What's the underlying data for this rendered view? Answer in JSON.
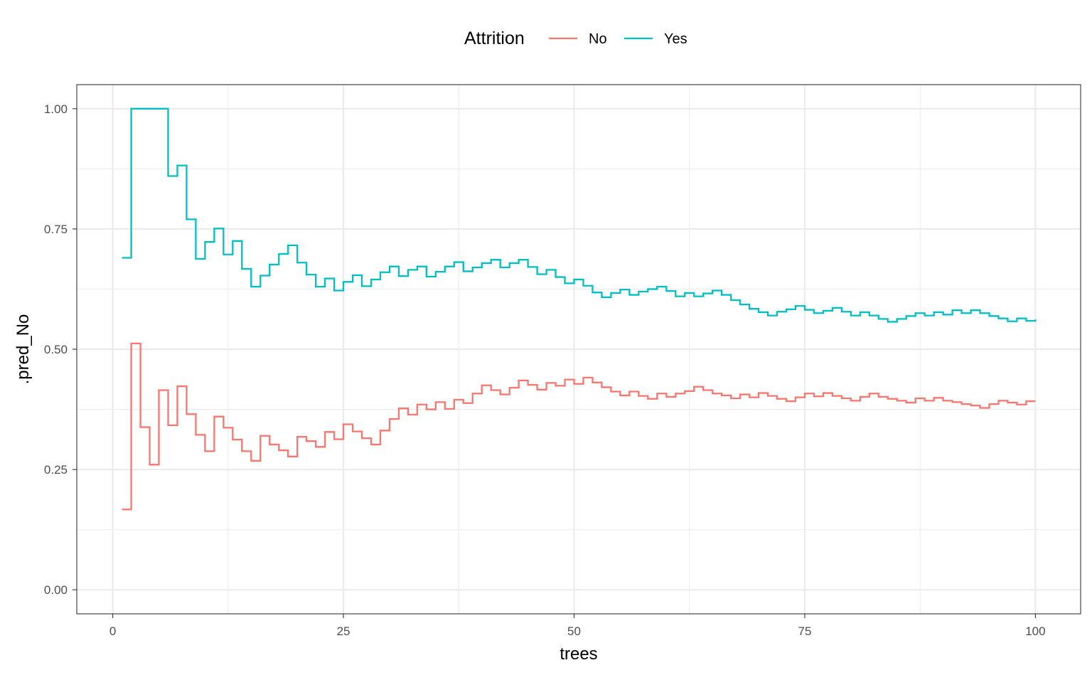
{
  "chart_data": {
    "type": "line",
    "step": true,
    "title": "",
    "xlabel": "trees",
    "ylabel": ".pred_No",
    "xlim": [
      -3.9,
      104.9
    ],
    "ylim": [
      -0.05,
      1.05
    ],
    "x_ticks": [
      0,
      25,
      50,
      75,
      100
    ],
    "x_tick_labels": [
      "0",
      "25",
      "50",
      "75",
      "100"
    ],
    "x_minor": [
      12.5,
      37.5,
      62.5,
      87.5
    ],
    "y_ticks": [
      0,
      0.25,
      0.5,
      0.75,
      1.0
    ],
    "y_tick_labels": [
      "0.00",
      "0.25",
      "0.50",
      "0.75",
      "1.00"
    ],
    "y_minor": [
      0.125,
      0.375,
      0.625,
      0.875
    ],
    "grid": true,
    "legend": {
      "title": "Attrition",
      "position": "top"
    },
    "x": [
      1,
      2,
      3,
      4,
      5,
      6,
      7,
      8,
      9,
      10,
      11,
      12,
      13,
      14,
      15,
      16,
      17,
      18,
      19,
      20,
      21,
      22,
      23,
      24,
      25,
      26,
      27,
      28,
      29,
      30,
      31,
      32,
      33,
      34,
      35,
      36,
      37,
      38,
      39,
      40,
      41,
      42,
      43,
      44,
      45,
      46,
      47,
      48,
      49,
      50,
      51,
      52,
      53,
      54,
      55,
      56,
      57,
      58,
      59,
      60,
      61,
      62,
      63,
      64,
      65,
      66,
      67,
      68,
      69,
      70,
      71,
      72,
      73,
      74,
      75,
      76,
      77,
      78,
      79,
      80,
      81,
      82,
      83,
      84,
      85,
      86,
      87,
      88,
      89,
      90,
      91,
      92,
      93,
      94,
      95,
      96,
      97,
      98,
      99,
      100
    ],
    "series": [
      {
        "name": "No",
        "color": "#F8766D",
        "values": [
          0.167,
          0.512,
          0.338,
          0.26,
          0.415,
          0.342,
          0.423,
          0.365,
          0.322,
          0.288,
          0.36,
          0.337,
          0.312,
          0.288,
          0.268,
          0.32,
          0.302,
          0.29,
          0.277,
          0.318,
          0.309,
          0.297,
          0.328,
          0.313,
          0.344,
          0.329,
          0.315,
          0.302,
          0.331,
          0.355,
          0.377,
          0.364,
          0.385,
          0.375,
          0.39,
          0.376,
          0.395,
          0.388,
          0.408,
          0.425,
          0.415,
          0.406,
          0.42,
          0.435,
          0.426,
          0.416,
          0.43,
          0.424,
          0.437,
          0.428,
          0.441,
          0.431,
          0.421,
          0.412,
          0.404,
          0.412,
          0.403,
          0.397,
          0.408,
          0.401,
          0.408,
          0.413,
          0.422,
          0.415,
          0.408,
          0.404,
          0.398,
          0.406,
          0.4,
          0.409,
          0.403,
          0.397,
          0.392,
          0.4,
          0.408,
          0.402,
          0.409,
          0.403,
          0.398,
          0.393,
          0.401,
          0.408,
          0.401,
          0.397,
          0.393,
          0.389,
          0.398,
          0.393,
          0.399,
          0.393,
          0.39,
          0.386,
          0.383,
          0.378,
          0.386,
          0.393,
          0.389,
          0.385,
          0.392,
          0.392
        ]
      },
      {
        "name": "Yes",
        "color": "#00BFC4",
        "values": [
          0.69,
          1.0,
          1.0,
          1.0,
          1.0,
          0.86,
          0.882,
          0.77,
          0.688,
          0.723,
          0.751,
          0.697,
          0.725,
          0.667,
          0.63,
          0.653,
          0.676,
          0.698,
          0.716,
          0.68,
          0.655,
          0.63,
          0.647,
          0.622,
          0.64,
          0.654,
          0.631,
          0.645,
          0.66,
          0.672,
          0.652,
          0.665,
          0.672,
          0.651,
          0.661,
          0.672,
          0.681,
          0.662,
          0.67,
          0.679,
          0.686,
          0.67,
          0.679,
          0.686,
          0.671,
          0.656,
          0.665,
          0.65,
          0.637,
          0.645,
          0.632,
          0.618,
          0.608,
          0.617,
          0.624,
          0.613,
          0.62,
          0.625,
          0.63,
          0.621,
          0.61,
          0.617,
          0.61,
          0.616,
          0.622,
          0.613,
          0.602,
          0.593,
          0.584,
          0.577,
          0.57,
          0.578,
          0.583,
          0.59,
          0.582,
          0.575,
          0.58,
          0.586,
          0.578,
          0.57,
          0.577,
          0.57,
          0.563,
          0.557,
          0.563,
          0.569,
          0.575,
          0.57,
          0.577,
          0.572,
          0.581,
          0.575,
          0.581,
          0.575,
          0.569,
          0.564,
          0.558,
          0.564,
          0.559,
          0.562
        ]
      }
    ]
  }
}
